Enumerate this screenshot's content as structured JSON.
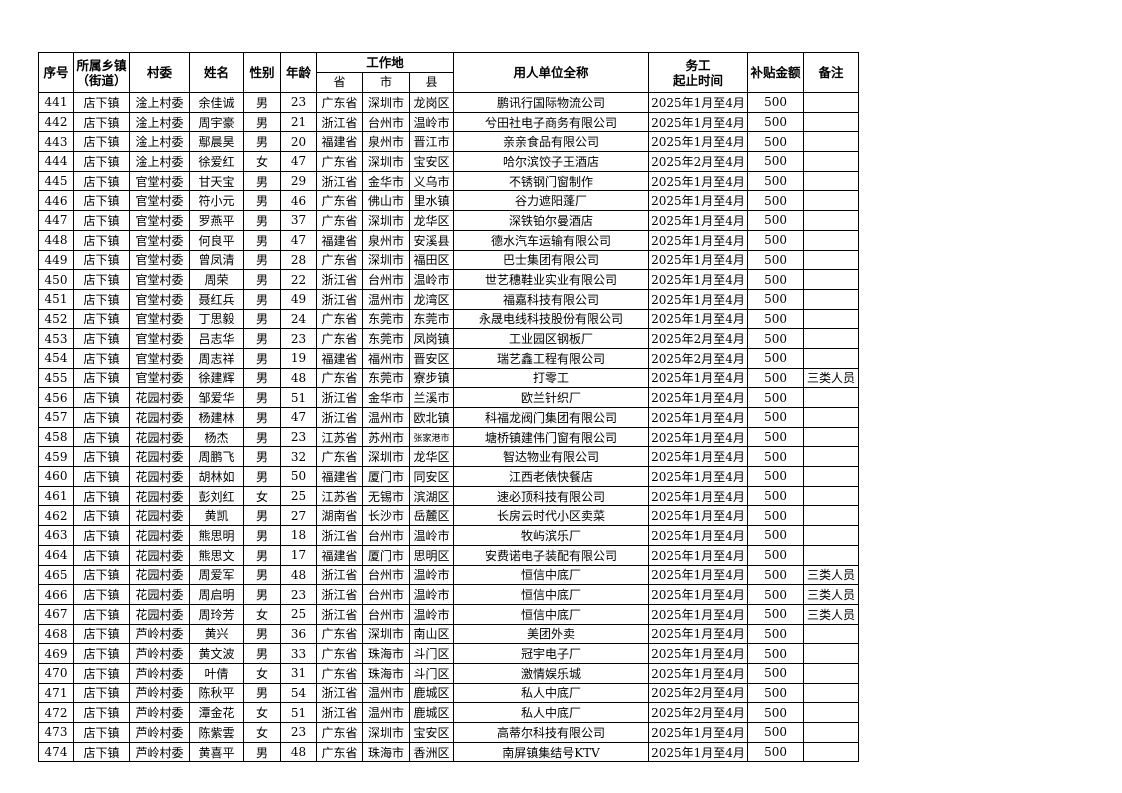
{
  "headers": {
    "seq": "序号",
    "township": "所属乡镇（街道）",
    "township_line1": "所属乡镇",
    "township_line2": "（街道）",
    "village": "村委",
    "name": "姓名",
    "gender": "性别",
    "age": "年龄",
    "workplace": "工作地",
    "province": "省",
    "city": "市",
    "county": "县",
    "employer": "用人单位全称",
    "period_line1": "务工",
    "period_line2": "起止时间",
    "subsidy": "补贴金额",
    "remark": "备注"
  },
  "rows": [
    [
      "441",
      "店下镇",
      "淦上村委",
      "余佳诚",
      "男",
      "23",
      "广东省",
      "深圳市",
      "龙岗区",
      "鹏讯行国际物流公司",
      "2025年1月至4月",
      "500",
      ""
    ],
    [
      "442",
      "店下镇",
      "淦上村委",
      "周宇豪",
      "男",
      "21",
      "浙江省",
      "台州市",
      "温岭市",
      "兮田社电子商务有限公司",
      "2025年1月至4月",
      "500",
      ""
    ],
    [
      "443",
      "店下镇",
      "淦上村委",
      "鄢晨昊",
      "男",
      "20",
      "福建省",
      "泉州市",
      "晋江市",
      "亲亲食品有限公司",
      "2025年1月至4月",
      "500",
      ""
    ],
    [
      "444",
      "店下镇",
      "淦上村委",
      "徐爱红",
      "女",
      "47",
      "广东省",
      "深圳市",
      "宝安区",
      "哈尔滨饺子王酒店",
      "2025年2月至4月",
      "500",
      ""
    ],
    [
      "445",
      "店下镇",
      "官堂村委",
      "甘天宝",
      "男",
      "29",
      "浙江省",
      "金华市",
      "义乌市",
      "不锈钢门窗制作",
      "2025年1月至4月",
      "500",
      ""
    ],
    [
      "446",
      "店下镇",
      "官堂村委",
      "符小元",
      "男",
      "46",
      "广东省",
      "佛山市",
      "里水镇",
      "谷力遮阳蓬厂",
      "2025年1月至4月",
      "500",
      ""
    ],
    [
      "447",
      "店下镇",
      "官堂村委",
      "罗燕平",
      "男",
      "37",
      "广东省",
      "深圳市",
      "龙华区",
      "深铁铂尔曼酒店",
      "2025年1月至4月",
      "500",
      ""
    ],
    [
      "448",
      "店下镇",
      "官堂村委",
      "何良平",
      "男",
      "47",
      "福建省",
      "泉州市",
      "安溪县",
      "德水汽车运输有限公司",
      "2025年1月至4月",
      "500",
      ""
    ],
    [
      "449",
      "店下镇",
      "官堂村委",
      "曾凤清",
      "男",
      "28",
      "广东省",
      "深圳市",
      "福田区",
      "巴士集团有限公司",
      "2025年1月至4月",
      "500",
      ""
    ],
    [
      "450",
      "店下镇",
      "官堂村委",
      "周荣",
      "男",
      "22",
      "浙江省",
      "台州市",
      "温岭市",
      "世艺穗鞋业实业有限公司",
      "2025年1月至4月",
      "500",
      ""
    ],
    [
      "451",
      "店下镇",
      "官堂村委",
      "聂红兵",
      "男",
      "49",
      "浙江省",
      "温州市",
      "龙湾区",
      "福嘉科技有限公司",
      "2025年1月至4月",
      "500",
      ""
    ],
    [
      "452",
      "店下镇",
      "官堂村委",
      "丁思毅",
      "男",
      "24",
      "广东省",
      "东莞市",
      "东莞市",
      "永晟电线科技股份有限公司",
      "2025年1月至4月",
      "500",
      ""
    ],
    [
      "453",
      "店下镇",
      "官堂村委",
      "吕志华",
      "男",
      "23",
      "广东省",
      "东莞市",
      "凤岗镇",
      "工业园区钢板厂",
      "2025年2月至4月",
      "500",
      ""
    ],
    [
      "454",
      "店下镇",
      "官堂村委",
      "周志祥",
      "男",
      "19",
      "福建省",
      "福州市",
      "晋安区",
      "瑞艺鑫工程有限公司",
      "2025年2月至4月",
      "500",
      ""
    ],
    [
      "455",
      "店下镇",
      "官堂村委",
      "徐建辉",
      "男",
      "48",
      "广东省",
      "东莞市",
      "寮步镇",
      "打零工",
      "2025年1月至4月",
      "500",
      "三类人员"
    ],
    [
      "456",
      "店下镇",
      "花园村委",
      "邹爱华",
      "男",
      "51",
      "浙江省",
      "金华市",
      "兰溪市",
      "欧兰针织厂",
      "2025年1月至4月",
      "500",
      ""
    ],
    [
      "457",
      "店下镇",
      "花园村委",
      "杨建林",
      "男",
      "47",
      "浙江省",
      "温州市",
      "欧北镇",
      "科福龙阀门集团有限公司",
      "2025年1月至4月",
      "500",
      ""
    ],
    [
      "458",
      "店下镇",
      "花园村委",
      "杨杰",
      "男",
      "23",
      "江苏省",
      "苏州市",
      "张家港市",
      "塘桥镇建伟门窗有限公司",
      "2025年1月至4月",
      "500",
      ""
    ],
    [
      "459",
      "店下镇",
      "花园村委",
      "周鹏飞",
      "男",
      "32",
      "广东省",
      "深圳市",
      "龙华区",
      "智达物业有限公司",
      "2025年1月至4月",
      "500",
      ""
    ],
    [
      "460",
      "店下镇",
      "花园村委",
      "胡林如",
      "男",
      "50",
      "福建省",
      "厦门市",
      "同安区",
      "江西老俵快餐店",
      "2025年1月至4月",
      "500",
      ""
    ],
    [
      "461",
      "店下镇",
      "花园村委",
      "彭刘红",
      "女",
      "25",
      "江苏省",
      "无锡市",
      "滨湖区",
      "速必顶科技有限公司",
      "2025年1月至4月",
      "500",
      ""
    ],
    [
      "462",
      "店下镇",
      "花园村委",
      "黄凯",
      "男",
      "27",
      "湖南省",
      "长沙市",
      "岳麓区",
      "长房云时代小区卖菜",
      "2025年1月至4月",
      "500",
      ""
    ],
    [
      "463",
      "店下镇",
      "花园村委",
      "熊思明",
      "男",
      "18",
      "浙江省",
      "台州市",
      "温岭市",
      "牧屿滨乐厂",
      "2025年1月至4月",
      "500",
      ""
    ],
    [
      "464",
      "店下镇",
      "花园村委",
      "熊思文",
      "男",
      "17",
      "福建省",
      "厦门市",
      "思明区",
      "安费诺电子装配有限公司",
      "2025年1月至4月",
      "500",
      ""
    ],
    [
      "465",
      "店下镇",
      "花园村委",
      "周爱军",
      "男",
      "48",
      "浙江省",
      "台州市",
      "温岭市",
      "恒信中底厂",
      "2025年1月至4月",
      "500",
      "三类人员"
    ],
    [
      "466",
      "店下镇",
      "花园村委",
      "周启明",
      "男",
      "23",
      "浙江省",
      "台州市",
      "温岭市",
      "恒信中底厂",
      "2025年1月至4月",
      "500",
      "三类人员"
    ],
    [
      "467",
      "店下镇",
      "花园村委",
      "周玲芳",
      "女",
      "25",
      "浙江省",
      "台州市",
      "温岭市",
      "恒信中底厂",
      "2025年1月至4月",
      "500",
      "三类人员"
    ],
    [
      "468",
      "店下镇",
      "芦岭村委",
      "黄兴",
      "男",
      "36",
      "广东省",
      "深圳市",
      "南山区",
      "美团外卖",
      "2025年1月至4月",
      "500",
      ""
    ],
    [
      "469",
      "店下镇",
      "芦岭村委",
      "黄文波",
      "男",
      "33",
      "广东省",
      "珠海市",
      "斗门区",
      "冠宇电子厂",
      "2025年1月至4月",
      "500",
      ""
    ],
    [
      "470",
      "店下镇",
      "芦岭村委",
      "叶倩",
      "女",
      "31",
      "广东省",
      "珠海市",
      "斗门区",
      "激情娱乐城",
      "2025年1月至4月",
      "500",
      ""
    ],
    [
      "471",
      "店下镇",
      "芦岭村委",
      "陈秋平",
      "男",
      "54",
      "浙江省",
      "温州市",
      "鹿城区",
      "私人中底厂",
      "2025年2月至4月",
      "500",
      ""
    ],
    [
      "472",
      "店下镇",
      "芦岭村委",
      "潭金花",
      "女",
      "51",
      "浙江省",
      "温州市",
      "鹿城区",
      "私人中底厂",
      "2025年2月至4月",
      "500",
      ""
    ],
    [
      "473",
      "店下镇",
      "芦岭村委",
      "陈紫雲",
      "女",
      "23",
      "广东省",
      "深圳市",
      "宝安区",
      "高蒂尔科技有限公司",
      "2025年1月至4月",
      "500",
      ""
    ],
    [
      "474",
      "店下镇",
      "芦岭村委",
      "黄喜平",
      "男",
      "48",
      "广东省",
      "珠海市",
      "香洲区",
      "南屏镇集结号KTV",
      "2025年1月至4月",
      "500",
      ""
    ]
  ]
}
